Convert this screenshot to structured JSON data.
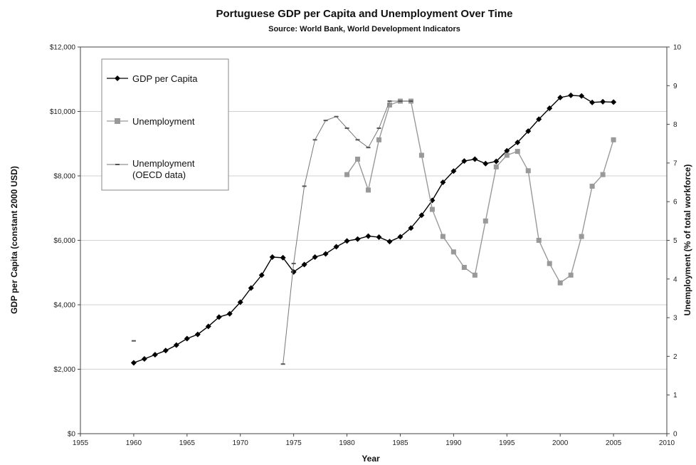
{
  "chart_data": {
    "type": "line",
    "title": "Portuguese GDP per Capita and Unemployment Over Time",
    "subtitle": "Source: World Bank, World Development Indicators",
    "xlabel": "Year",
    "ylabel_left": "GDP per Capita (constant 2000 USD)",
    "ylabel_right": "Unemployment (% of total workforce)",
    "xlim": [
      1955,
      2010
    ],
    "ylim_left": [
      0,
      12000
    ],
    "ylim_right": [
      0,
      10
    ],
    "x_ticks": [
      "1955",
      "1960",
      "1965",
      "1970",
      "1975",
      "1980",
      "1985",
      "1990",
      "1995",
      "2000",
      "2005",
      "2010"
    ],
    "y_left_ticks": [
      "$0",
      "$2,000",
      "$4,000",
      "$6,000",
      "$8,000",
      "$10,000",
      "$12,000"
    ],
    "y_right_ticks": [
      "0",
      "1",
      "2",
      "3",
      "4",
      "5",
      "6",
      "7",
      "8",
      "9",
      "10"
    ],
    "grid": "horizontal",
    "legend_position": "top-left",
    "series": [
      {
        "name": "GDP per Capita",
        "axis": "left",
        "color": "#000000",
        "marker": "diamond",
        "x": [
          1960,
          1961,
          1962,
          1963,
          1964,
          1965,
          1966,
          1967,
          1968,
          1969,
          1970,
          1971,
          1972,
          1973,
          1974,
          1975,
          1976,
          1977,
          1978,
          1979,
          1980,
          1981,
          1982,
          1983,
          1984,
          1985,
          1986,
          1987,
          1988,
          1989,
          1990,
          1991,
          1992,
          1993,
          1994,
          1995,
          1996,
          1997,
          1998,
          1999,
          2000,
          2001,
          2002,
          2003,
          2004,
          2005
        ],
        "values": [
          2200,
          2320,
          2450,
          2580,
          2750,
          2950,
          3080,
          3330,
          3620,
          3720,
          4080,
          4520,
          4920,
          5480,
          5460,
          5020,
          5250,
          5480,
          5580,
          5800,
          5980,
          6040,
          6130,
          6100,
          5960,
          6110,
          6380,
          6780,
          7240,
          7800,
          8150,
          8460,
          8520,
          8380,
          8450,
          8780,
          9040,
          9390,
          9760,
          10100,
          10430,
          10500,
          10480,
          10280,
          10300,
          10290
        ]
      },
      {
        "name": "Unemployment",
        "axis": "right",
        "color": "#999999",
        "marker": "square",
        "x": [
          1980,
          1981,
          1982,
          1983,
          1984,
          1985,
          1986,
          1987,
          1988,
          1989,
          1990,
          1991,
          1992,
          1993,
          1994,
          1995,
          1996,
          1997,
          1998,
          1999,
          2000,
          2001,
          2002,
          2003,
          2004,
          2005
        ],
        "values": [
          6.7,
          7.1,
          6.3,
          7.6,
          8.5,
          8.6,
          8.6,
          7.2,
          5.8,
          5.1,
          4.7,
          4.3,
          4.1,
          5.5,
          6.9,
          7.2,
          7.3,
          6.8,
          5.0,
          4.4,
          3.9,
          4.1,
          5.1,
          6.4,
          6.7,
          7.6
        ]
      },
      {
        "name": "Unemployment (OECD data)",
        "axis": "right",
        "color": "#777777",
        "marker": "dash",
        "x": [
          1974,
          1975,
          1976,
          1977,
          1978,
          1979,
          1980,
          1981,
          1982,
          1983,
          1984,
          1985,
          1986
        ],
        "values": [
          1.8,
          4.4,
          6.4,
          7.6,
          8.1,
          8.2,
          7.9,
          7.6,
          7.4,
          7.9,
          8.6,
          8.6,
          8.6
        ]
      },
      {
        "name": "",
        "axis": "right",
        "color": "#777777",
        "marker": "dash",
        "x": [
          1960
        ],
        "values": [
          2.4
        ]
      }
    ],
    "colors": {
      "gdp": "#000000",
      "unemployment": "#999999",
      "oecd": "#777777",
      "grid": "#d0d0d0"
    }
  }
}
